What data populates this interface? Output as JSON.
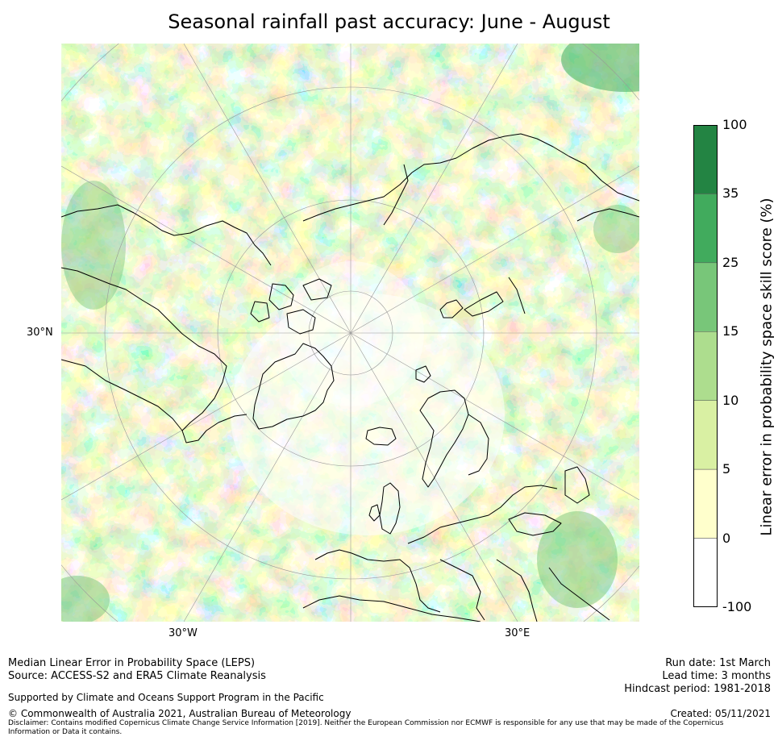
{
  "title": "Seasonal rainfall past accuracy: June - August",
  "map": {
    "projection": "north-polar-stereographic",
    "lon_labels": [
      "30°W",
      "30°E"
    ],
    "lat_labels": [
      "30°N"
    ],
    "colors": {
      "ocean_white": "#ffffff",
      "coast_line": "#000000",
      "grid_line": "#999999"
    }
  },
  "colorbar": {
    "label": "Linear error in probability space skill score (%)",
    "ticks": [
      "100",
      "35",
      "25",
      "15",
      "10",
      "5",
      "0",
      "-100"
    ],
    "bins": [
      {
        "range": "35 to 100",
        "color": "#238443"
      },
      {
        "range": "25 to 35",
        "color": "#41ab5d"
      },
      {
        "range": "15 to 25",
        "color": "#78c679"
      },
      {
        "range": "10 to 15",
        "color": "#addd8e"
      },
      {
        "range": "5 to 10",
        "color": "#d9f0a3"
      },
      {
        "range": "0 to 5",
        "color": "#ffffcc"
      },
      {
        "range": "-100 to 0",
        "color": "#ffffff"
      }
    ]
  },
  "footer": {
    "left_line1": "Median Linear Error in Probability Space (LEPS)",
    "left_line2": "Source: ACCESS-S2 and ERA5 Climate Reanalysis",
    "supported": "Supported by Climate and Oceans Support Program in the Pacific",
    "copyright": "© Commonwealth of Australia 2021, Australian Bureau of Meteorology",
    "disclaimer": "Disclaimer: Contains modified Copernicus Climate Change Service Information [2019]. Neither the European Commission nor ECMWF is responsible for any use that may be made of the Copernicus Information or Data it contains.",
    "run_date": "Run date: 1st March",
    "lead_time": "Lead time: 3 months",
    "hindcast": "Hindcast period: 1981-2018",
    "created": "Created: 05/11/2021"
  }
}
